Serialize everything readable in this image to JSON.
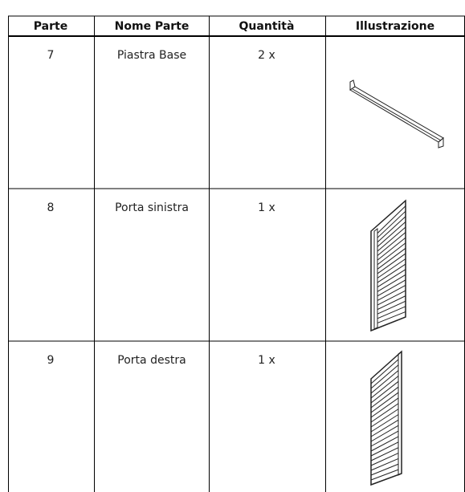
{
  "table": {
    "header": [
      "Parte",
      "Nome Parte",
      "Quantità",
      "Illustrazione"
    ],
    "rows": [
      [
        "7",
        "Piastra Base",
        "2 x"
      ],
      [
        "8",
        "Porta sinistra",
        "1 x"
      ],
      [
        "9",
        "Porta destra",
        "1 x"
      ]
    ]
  }
}
